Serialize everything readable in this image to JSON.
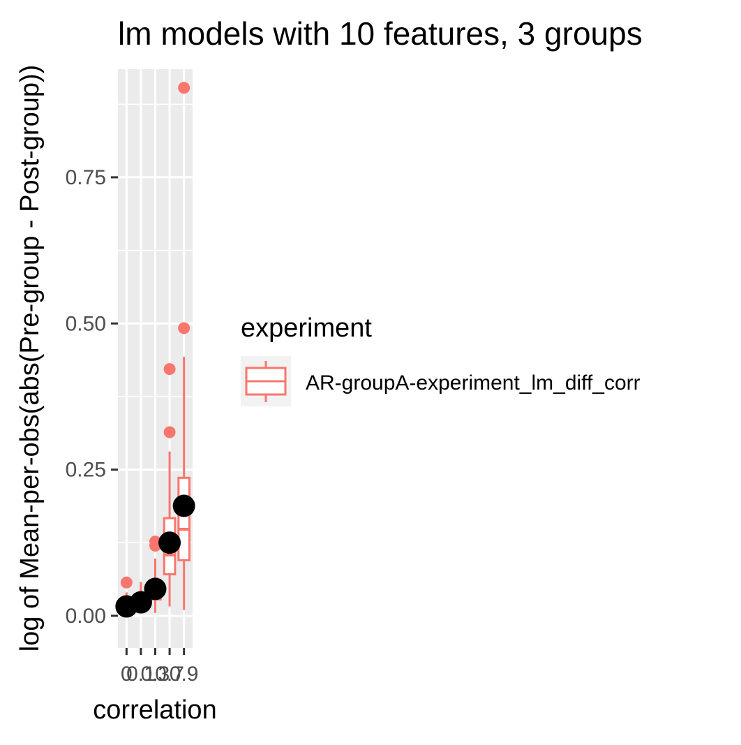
{
  "chart_data": {
    "type": "box",
    "title": "lm models with 10 features, 3 groups",
    "xlabel": "correlation",
    "ylabel": "log of Mean-per-obs(abs(Pre-group - Post-group))",
    "x_ticks": [
      "0",
      "0.1",
      "0.3",
      "0.7",
      "0.9"
    ],
    "y_ticks": [
      "0.00",
      "0.25",
      "0.50",
      "0.75"
    ],
    "ylim": [
      -0.055,
      0.935
    ],
    "grid": true,
    "legend": {
      "title": "experiment",
      "position": "right",
      "entries": [
        {
          "name": "AR-groupA-experiment_lm_diff_corr",
          "color": "#F8766D"
        }
      ]
    },
    "boxes": [
      {
        "x": "0",
        "lower_whisker": 0.003,
        "q1": 0.01,
        "median": 0.016,
        "q3": 0.022,
        "upper_whisker": 0.04,
        "outliers": [
          0.057
        ]
      },
      {
        "x": "0.1",
        "lower_whisker": 0.012,
        "q1": 0.019,
        "median": 0.024,
        "q3": 0.031,
        "upper_whisker": 0.058,
        "outliers": []
      },
      {
        "x": "0.3",
        "lower_whisker": 0.005,
        "q1": 0.028,
        "median": 0.042,
        "q3": 0.057,
        "upper_whisker": 0.098,
        "outliers": [
          0.12,
          0.127
        ]
      },
      {
        "x": "0.7",
        "lower_whisker": 0.016,
        "q1": 0.071,
        "median": 0.104,
        "q3": 0.167,
        "upper_whisker": 0.281,
        "outliers": [
          0.314,
          0.422
        ]
      },
      {
        "x": "0.9",
        "lower_whisker": 0.01,
        "q1": 0.095,
        "median": 0.148,
        "q3": 0.236,
        "upper_whisker": 0.443,
        "outliers": [
          0.492,
          0.903
        ]
      }
    ],
    "means": [
      {
        "x": "0",
        "value": 0.016
      },
      {
        "x": "0.1",
        "value": 0.023
      },
      {
        "x": "0.3",
        "value": 0.046
      },
      {
        "x": "0.7",
        "value": 0.125
      },
      {
        "x": "0.9",
        "value": 0.188
      }
    ],
    "colors": {
      "box": "#F8766D",
      "outlier": "#F8766D",
      "mean": "#000000",
      "panel_bg": "#EBEBEB",
      "grid": "#FFFFFF"
    }
  }
}
